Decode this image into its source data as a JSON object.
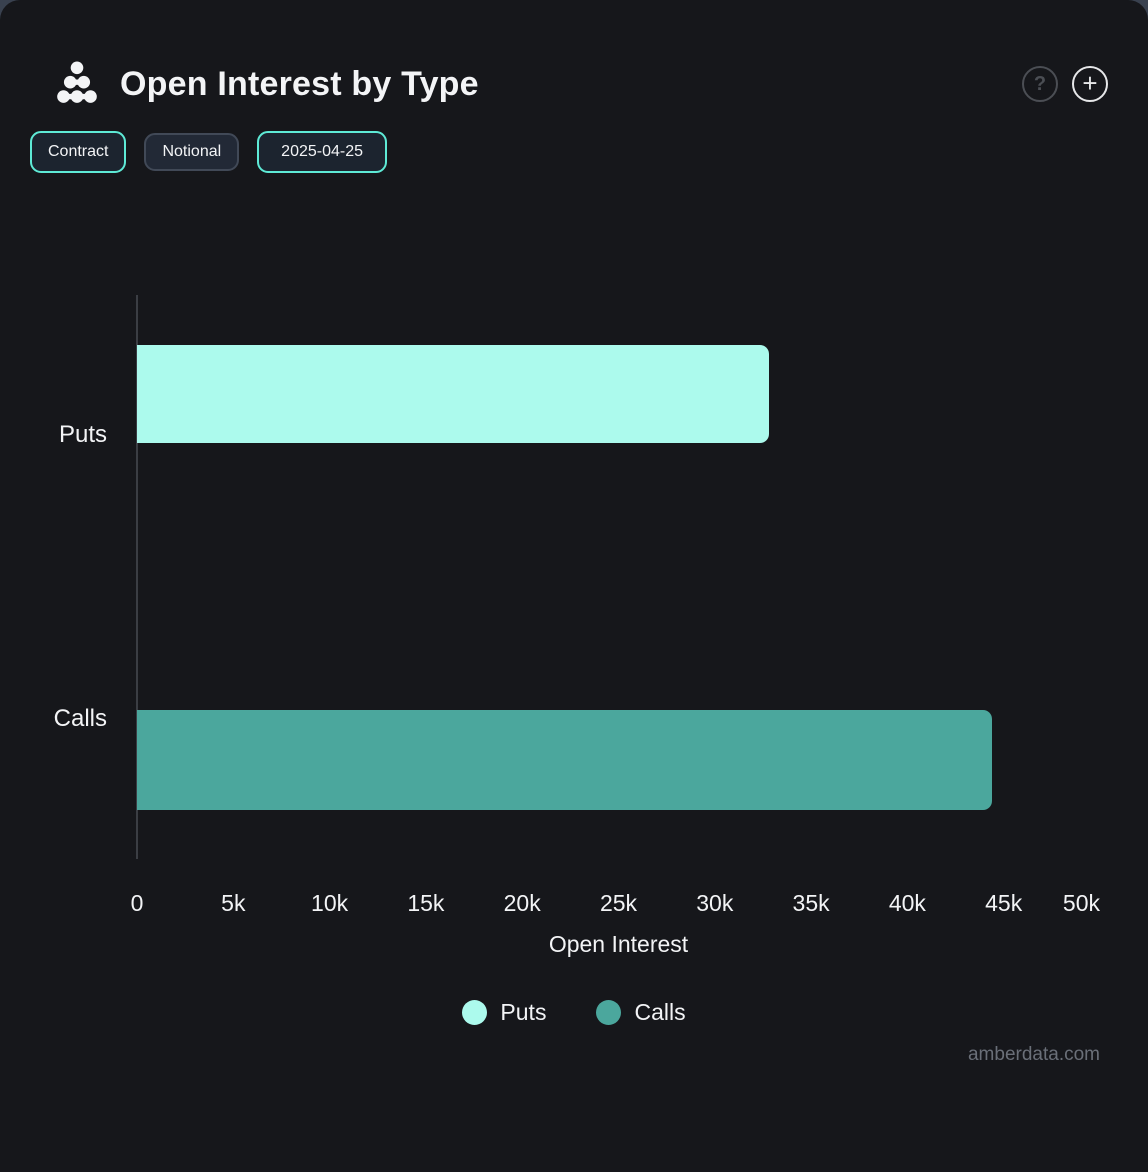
{
  "header": {
    "title": "Open Interest by Type"
  },
  "icons": {
    "help": "?",
    "add": "+"
  },
  "toolbar": {
    "contract_label": "Contract",
    "notional_label": "Notional",
    "date_label": "2025-04-25"
  },
  "chart_data": {
    "type": "bar",
    "orientation": "horizontal",
    "title": "Open Interest by Type",
    "categories": [
      "Puts",
      "Calls"
    ],
    "values": [
      32800,
      44400
    ],
    "colors": [
      "#ACFAED",
      "#4BA79D"
    ],
    "xlabel": "Open Interest",
    "ylabel": "",
    "xlim": [
      0,
      50000
    ],
    "x_ticks": {
      "labels": [
        "0",
        "5k",
        "10k",
        "15k",
        "20k",
        "25k",
        "30k",
        "35k",
        "40k",
        "45k",
        "50k"
      ],
      "values": [
        0,
        5000,
        10000,
        15000,
        20000,
        25000,
        30000,
        35000,
        40000,
        45000,
        50000
      ]
    },
    "grid": false,
    "legend_position": "bottom",
    "legend": [
      {
        "label": "Puts",
        "color": "#ACFAED"
      },
      {
        "label": "Calls",
        "color": "#4BA79D"
      }
    ]
  },
  "footer": {
    "watermark": "amberdata.com"
  },
  "colors": {
    "accent": "#5EEAD6",
    "panel": "#16171B",
    "puts": "#ACFAED",
    "calls": "#4BA79D",
    "axis_line": "#3B3E44",
    "muted_text": "#6A6F78"
  }
}
